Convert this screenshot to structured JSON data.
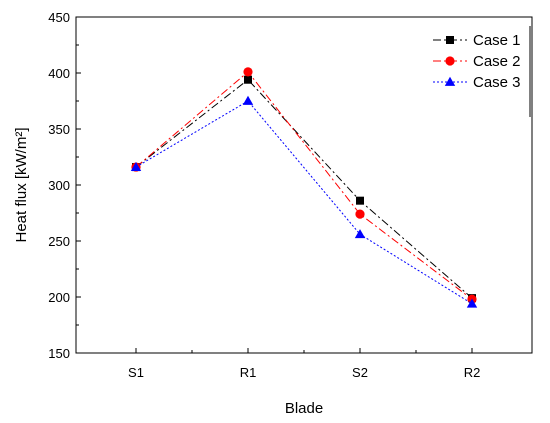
{
  "chart_data": {
    "type": "line",
    "categories": [
      "S1",
      "R1",
      "S2",
      "R2"
    ],
    "xlabel": "Blade",
    "ylabel": "Heat flux [kW/m²]",
    "ylim": [
      150,
      450
    ],
    "yticks": [
      150,
      200,
      250,
      300,
      350,
      400,
      450
    ],
    "grid": false,
    "legend_position": "top-right",
    "series": [
      {
        "name": "Case 1",
        "values": [
          316,
          394,
          286,
          199
        ],
        "color": "#000000",
        "marker": "square",
        "line_style": "dash-dot"
      },
      {
        "name": "Case 2",
        "values": [
          316,
          401,
          274,
          198
        ],
        "color": "#ff0000",
        "marker": "circle",
        "line_style": "dash-dot"
      },
      {
        "name": "Case 3",
        "values": [
          316,
          375,
          256,
          194
        ],
        "color": "#0000ff",
        "marker": "triangle",
        "line_style": "dotted"
      }
    ]
  }
}
